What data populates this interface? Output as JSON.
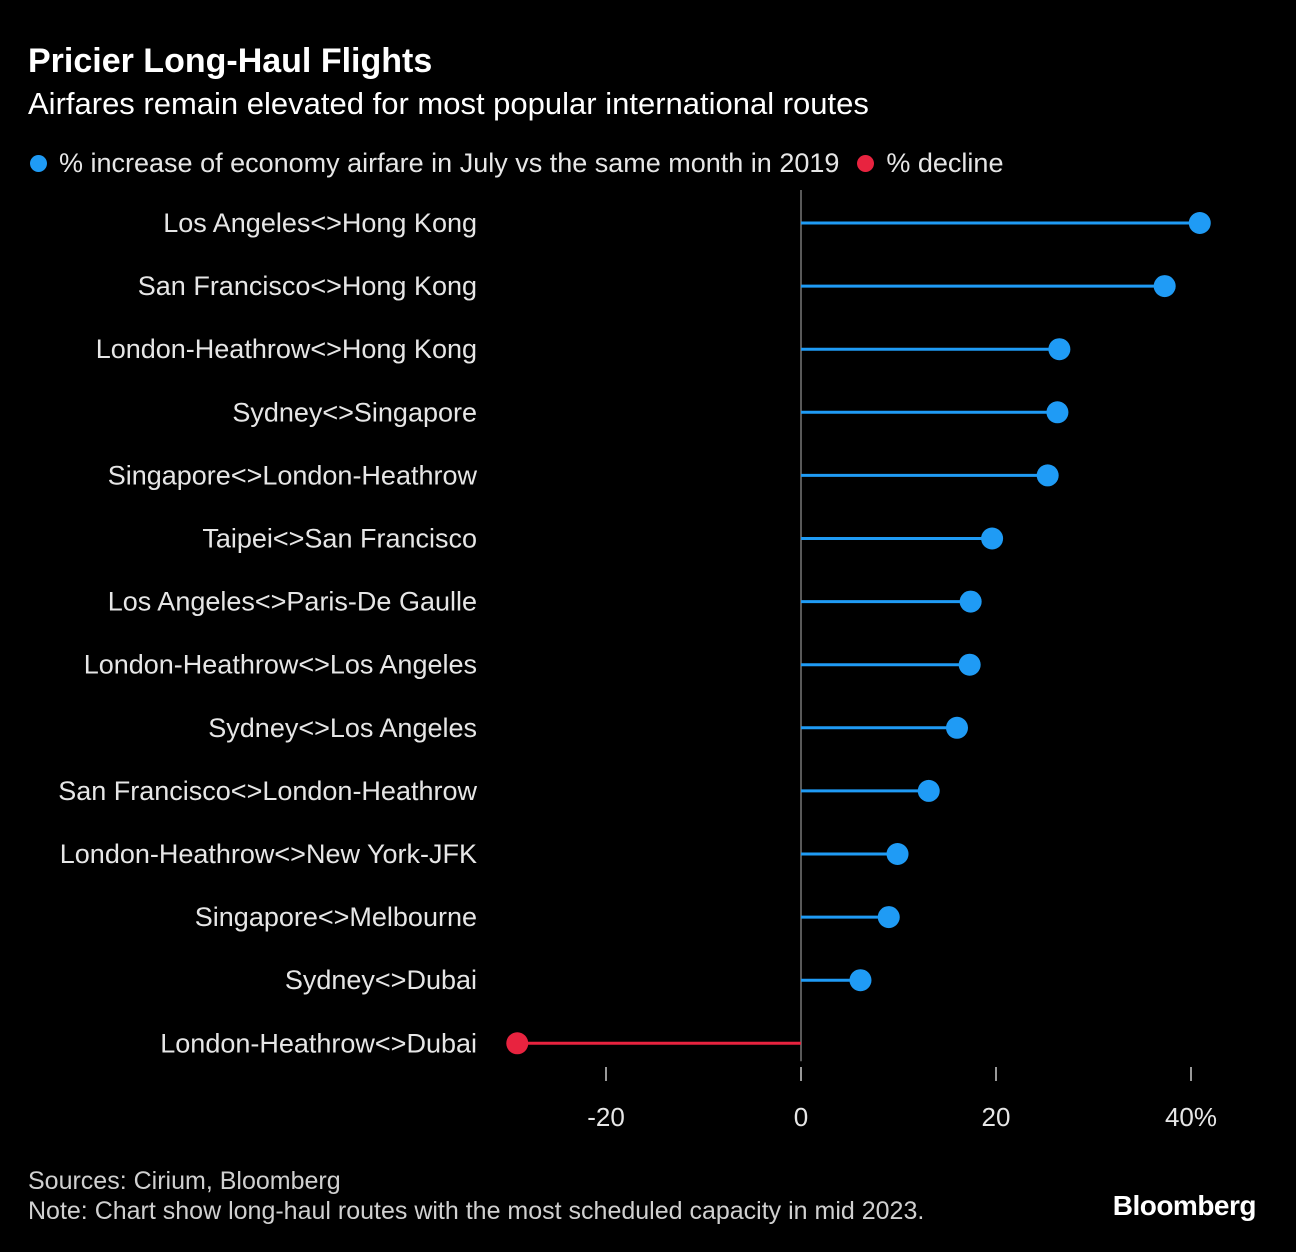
{
  "chart_data": {
    "type": "lollipop",
    "title": "Pricier Long-Haul Flights",
    "subtitle": "Airfares remain elevated for most popular international routes",
    "legend": [
      {
        "label": "% increase of economy airfare in July vs the same month in 2019",
        "color": "#1f9bf5"
      },
      {
        "label": "% decline",
        "color": "#e8233f"
      }
    ],
    "categories": [
      "Los Angeles<>Hong Kong",
      "San Francisco<>Hong Kong",
      "London-Heathrow<>Hong Kong",
      "Sydney<>Singapore",
      "Singapore<>London-Heathrow",
      "Taipei<>San Francisco",
      "Los Angeles<>Paris-De Gaulle",
      "London-Heathrow<>Los Angeles",
      "Sydney<>Los Angeles",
      "San Francisco<>London-Heathrow",
      "London-Heathrow<>New York-JFK",
      "Singapore<>Melbourne",
      "Sydney<>Dubai",
      "London-Heathrow<>Dubai"
    ],
    "values": [
      40.9,
      37.3,
      26.5,
      26.3,
      25.3,
      19.6,
      17.4,
      17.3,
      16.0,
      13.1,
      9.9,
      9.0,
      6.1,
      -29.1
    ],
    "xlim": [
      -30,
      42
    ],
    "xticks": [
      -20,
      0,
      20,
      40
    ],
    "xtick_labels": [
      "-20",
      "0",
      "20",
      "40%"
    ],
    "grid": false,
    "legend_position": "top"
  },
  "footer": {
    "sources": "Sources: Cirium, Bloomberg",
    "note": "Note: Chart show long-haul routes with the most scheduled capacity in mid 2023.",
    "logo": "Bloomberg"
  }
}
